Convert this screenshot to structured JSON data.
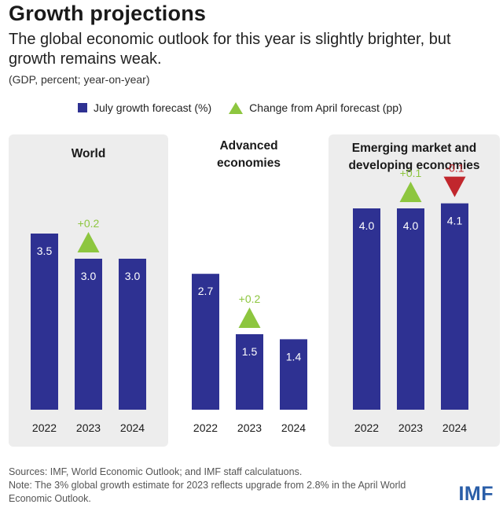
{
  "header": {
    "title": "Growth projections",
    "subtitle": "The global economic outlook for this year is slightly brighter, but growth remains weak.",
    "units": "(GDP, percent; year-on-year)"
  },
  "legend": {
    "bar_label": "July growth forecast (%)",
    "triangle_label": "Change from April forecast (pp)"
  },
  "footer": {
    "sources": "Sources: IMF, World Economic Outlook; and IMF staff calculatuons.",
    "note": "Note: The 3% global growth estimate for 2023 reflects upgrade from 2.8% in the April World Economic Outlook.",
    "logo": "IMF"
  },
  "colors": {
    "bar": "#2e3192",
    "up": "#8dc63f",
    "down": "#c1272d",
    "panel": "#ededed"
  },
  "chart_data": [
    {
      "type": "bar",
      "title": "World",
      "categories": [
        "2022",
        "2023",
        "2024"
      ],
      "values": [
        3.5,
        3.0,
        3.0
      ],
      "value_labels": [
        "3.5",
        "3.0",
        "3.0"
      ],
      "changes": [
        {
          "category": "2023",
          "value": 0.2,
          "label": "+0.2",
          "direction": "up"
        }
      ],
      "shaded": true
    },
    {
      "type": "bar",
      "title": "Advanced economies",
      "categories": [
        "2022",
        "2023",
        "2024"
      ],
      "values": [
        2.7,
        1.5,
        1.4
      ],
      "value_labels": [
        "2.7",
        "1.5",
        "1.4"
      ],
      "changes": [
        {
          "category": "2023",
          "value": 0.2,
          "label": "+0.2",
          "direction": "up"
        }
      ],
      "shaded": false
    },
    {
      "type": "bar",
      "title": "Emerging market and developing economies",
      "categories": [
        "2022",
        "2023",
        "2024"
      ],
      "values": [
        4.0,
        4.0,
        4.1
      ],
      "value_labels": [
        "4.0",
        "4.0",
        "4.1"
      ],
      "changes": [
        {
          "category": "2023",
          "value": 0.1,
          "label": "+0.1",
          "direction": "up"
        },
        {
          "category": "2024",
          "value": -0.1,
          "label": "-0.1",
          "direction": "down"
        }
      ],
      "shaded": true
    }
  ]
}
